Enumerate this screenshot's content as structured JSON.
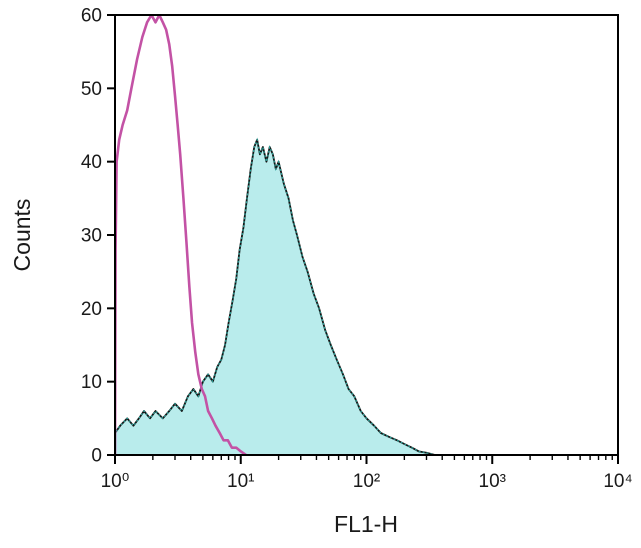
{
  "chart_data": {
    "type": "area",
    "title": "",
    "xlabel": "FL1-H",
    "ylabel": "Counts",
    "xscale": "log",
    "xlim": [
      1,
      10000
    ],
    "ylim": [
      0,
      60
    ],
    "grid": false,
    "legend": "none",
    "colors": {
      "control_line": "#c352a5",
      "sample_fill": "#b9ecec",
      "sample_outline": "#141414",
      "sample_overlay_dotted": "#2ba39b",
      "axis": "#000000",
      "background": "#ffffff"
    },
    "xticks": [
      {
        "v": 1,
        "label": "10⁰"
      },
      {
        "v": 10,
        "label": "10¹"
      },
      {
        "v": 100,
        "label": "10²"
      },
      {
        "v": 1000,
        "label": "10³"
      },
      {
        "v": 10000,
        "label": "10⁴"
      }
    ],
    "yticks": [
      {
        "v": 0,
        "label": "0"
      },
      {
        "v": 10,
        "label": "10"
      },
      {
        "v": 20,
        "label": "20"
      },
      {
        "v": 30,
        "label": "30"
      },
      {
        "v": 40,
        "label": "40"
      },
      {
        "v": 50,
        "label": "50"
      },
      {
        "v": 60,
        "label": "60"
      }
    ],
    "series": [
      {
        "name": "sample-filled-histogram",
        "style": "filled",
        "points": [
          [
            1.0,
            0
          ],
          [
            1.0,
            3
          ],
          [
            1.1,
            4
          ],
          [
            1.25,
            5
          ],
          [
            1.4,
            4
          ],
          [
            1.55,
            5
          ],
          [
            1.7,
            6
          ],
          [
            1.9,
            5
          ],
          [
            2.1,
            6
          ],
          [
            2.4,
            5
          ],
          [
            2.7,
            6
          ],
          [
            3.0,
            7
          ],
          [
            3.4,
            6
          ],
          [
            3.8,
            8
          ],
          [
            4.2,
            9
          ],
          [
            4.6,
            8
          ],
          [
            5.0,
            10
          ],
          [
            5.5,
            11
          ],
          [
            6.0,
            10
          ],
          [
            6.5,
            12
          ],
          [
            7.0,
            13
          ],
          [
            7.5,
            15
          ],
          [
            8.0,
            18
          ],
          [
            8.6,
            21
          ],
          [
            9.2,
            24
          ],
          [
            9.8,
            28
          ],
          [
            10.5,
            31
          ],
          [
            11.2,
            35
          ],
          [
            12.0,
            39
          ],
          [
            12.8,
            42
          ],
          [
            13.5,
            43
          ],
          [
            14.2,
            41
          ],
          [
            15.0,
            42
          ],
          [
            16.0,
            40
          ],
          [
            17.0,
            42
          ],
          [
            18.0,
            41
          ],
          [
            19.0,
            39
          ],
          [
            20.0,
            40
          ],
          [
            22.0,
            37
          ],
          [
            24.0,
            35
          ],
          [
            26.0,
            32
          ],
          [
            28.0,
            30
          ],
          [
            31.0,
            27
          ],
          [
            34.0,
            25
          ],
          [
            38.0,
            22
          ],
          [
            42.0,
            20
          ],
          [
            47.0,
            17
          ],
          [
            52.0,
            15
          ],
          [
            58.0,
            13
          ],
          [
            65.0,
            11
          ],
          [
            72.0,
            9
          ],
          [
            80.0,
            8
          ],
          [
            90.0,
            6
          ],
          [
            100.0,
            5
          ],
          [
            115.0,
            4
          ],
          [
            130.0,
            3
          ],
          [
            150.0,
            2.5
          ],
          [
            175.0,
            2
          ],
          [
            200.0,
            1.5
          ],
          [
            230.0,
            1
          ],
          [
            260.0,
            0.5
          ],
          [
            300.0,
            0.3
          ],
          [
            350.0,
            0
          ]
        ]
      },
      {
        "name": "control-open-histogram",
        "style": "line",
        "points": [
          [
            1.0,
            0
          ],
          [
            1.01,
            28
          ],
          [
            1.03,
            40
          ],
          [
            1.08,
            43
          ],
          [
            1.15,
            45
          ],
          [
            1.25,
            47
          ],
          [
            1.35,
            50
          ],
          [
            1.5,
            54
          ],
          [
            1.65,
            57
          ],
          [
            1.8,
            59
          ],
          [
            1.95,
            60
          ],
          [
            2.1,
            59
          ],
          [
            2.25,
            60
          ],
          [
            2.4,
            59
          ],
          [
            2.55,
            58
          ],
          [
            2.7,
            56
          ],
          [
            2.85,
            53
          ],
          [
            3.0,
            49
          ],
          [
            3.15,
            45
          ],
          [
            3.3,
            41
          ],
          [
            3.5,
            35
          ],
          [
            3.7,
            29
          ],
          [
            3.9,
            23
          ],
          [
            4.1,
            18
          ],
          [
            4.35,
            14
          ],
          [
            4.6,
            11
          ],
          [
            4.9,
            9
          ],
          [
            5.2,
            8
          ],
          [
            5.5,
            6
          ],
          [
            5.9,
            5
          ],
          [
            6.3,
            4
          ],
          [
            6.8,
            3
          ],
          [
            7.3,
            2
          ],
          [
            7.9,
            2
          ],
          [
            8.5,
            1
          ],
          [
            9.2,
            1
          ],
          [
            10.0,
            0.5
          ],
          [
            11.0,
            0
          ]
        ]
      }
    ]
  }
}
